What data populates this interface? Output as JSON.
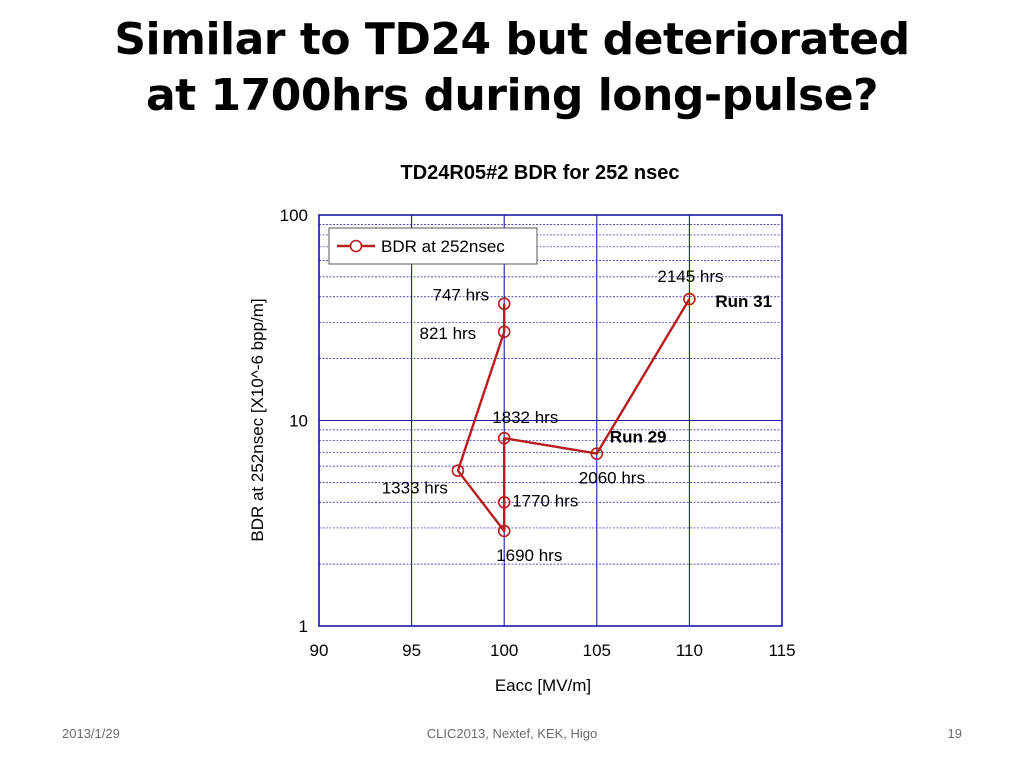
{
  "slide": {
    "title_line1": "Similar to TD24 but deteriorated",
    "title_line2": "at 1700hrs during long-pulse?"
  },
  "footer": {
    "date": "2013/1/29",
    "center": "CLIC2013, Nextef, KEK,  Higo",
    "page": "19"
  },
  "chart_data": {
    "type": "line",
    "title": "TD24R05#2  BDR for 252 nsec",
    "xlabel": "Eacc [MV/m]",
    "ylabel": "BDR at 252nsec [X10^-6 bpp/m]",
    "xlim": [
      90,
      115
    ],
    "ylim": [
      1,
      100
    ],
    "y_scale": "log",
    "x_ticks": [
      90,
      95,
      100,
      105,
      110,
      115
    ],
    "y_ticks": [
      1,
      10,
      100
    ],
    "grid": true,
    "legend_position": "top-left",
    "series": [
      {
        "name": "BDR at 252nsec",
        "color": "#b81c1c",
        "marker": "open-circle",
        "points": [
          {
            "x": 100,
            "y": 37,
            "label": "747 hrs"
          },
          {
            "x": 100,
            "y": 27,
            "label": "821 hrs"
          },
          {
            "x": 97.5,
            "y": 5.7,
            "label": "1333 hrs"
          },
          {
            "x": 100,
            "y": 2.9,
            "label": "1690 hrs"
          },
          {
            "x": 100,
            "y": 4.0,
            "label": "1770 hrs"
          },
          {
            "x": 100,
            "y": 8.2,
            "label": "1832 hrs"
          },
          {
            "x": 105,
            "y": 6.9,
            "label": "2060 hrs"
          },
          {
            "x": 110,
            "y": 39,
            "label": "2145 hrs"
          }
        ]
      }
    ],
    "annotations": [
      {
        "text": "Run 31",
        "x": 110,
        "y": 39
      },
      {
        "text": "Run 29",
        "x": 105,
        "y": 6.9
      }
    ]
  }
}
